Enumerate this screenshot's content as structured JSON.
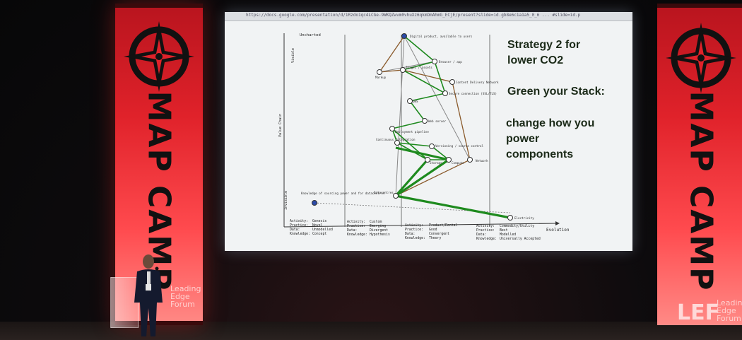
{
  "banners": {
    "event_name": "MAP CAMP",
    "left_sub": [
      "Leading",
      "Edge",
      "Forum"
    ],
    "right_sub": [
      "Leading",
      "Edge",
      "Forum"
    ],
    "logo_right": "LEF"
  },
  "browser": {
    "url": "https://docs.google.com/presentation/d/1Rzdo1qc4LCGe-9WKQZwvm0vhuXz6qkmDmAhmG_ECjE/present?slide=id.gb8e6c1a1a5_0_6 ... #slide=id.p"
  },
  "slide": {
    "heading": "Strategy 2 for lower CO2",
    "heading_lines": [
      "Strategy 2 for",
      "lower CO2"
    ],
    "subheading": "Green your Stack:",
    "body_lines": [
      "change how you",
      "power",
      "components"
    ],
    "map": {
      "y_axis": "Value Chain",
      "y_top": "Visible",
      "y_bottom": "Invisible",
      "x_axis": "Evolution",
      "top_left_label": "Uncharted",
      "nodes": [
        {
          "id": "digital",
          "label": "Digital product, available to users"
        },
        {
          "id": "browser",
          "label": "Browser / app"
        },
        {
          "id": "assets",
          "label": "Images / assets"
        },
        {
          "id": "markup",
          "label": "Markup"
        },
        {
          "id": "cdn",
          "label": "Content Delivery Network"
        },
        {
          "id": "secure",
          "label": "Secure connection (SSL/TLS)"
        },
        {
          "id": "dns",
          "label": "DNS"
        },
        {
          "id": "webserver",
          "label": "Web server"
        },
        {
          "id": "pipeline",
          "label": "Deployment pipeline"
        },
        {
          "id": "ci",
          "label": "Continuous Integration"
        },
        {
          "id": "vcs",
          "label": "Versioning / source control"
        },
        {
          "id": "storage",
          "label": "Storage"
        },
        {
          "id": "compute",
          "label": "Compute"
        },
        {
          "id": "network",
          "label": "Network"
        },
        {
          "id": "datacentre",
          "label": "Datacentres"
        },
        {
          "id": "knowledge",
          "label": "Knowledge of sourcing power and for datacentres"
        },
        {
          "id": "electricity",
          "label": "Electricity"
        }
      ],
      "stages": [
        {
          "activity": "Genesis",
          "practice": "Novel",
          "data": "Unmodelled",
          "knowledge": "Concept"
        },
        {
          "activity": "Custom",
          "practice": "Emerging",
          "data": "Divergent",
          "knowledge": "Hypothesis"
        },
        {
          "activity": "Product/Rental",
          "practice": "Good",
          "data": "Convergent",
          "knowledge": "Theory"
        },
        {
          "activity": "Commodity/Utility",
          "practice": "Best",
          "data": "Modelled",
          "knowledge": "Universally Accepted"
        }
      ],
      "row_labels": {
        "activity": "Activity:",
        "practice": "Practice:",
        "data": "Data:",
        "knowledge": "Knowledge:"
      },
      "colors": {
        "green": "#1e8a1e",
        "brown": "#8a5a2b",
        "grey": "#777777",
        "node_blue": "#2b4aa8"
      }
    }
  }
}
